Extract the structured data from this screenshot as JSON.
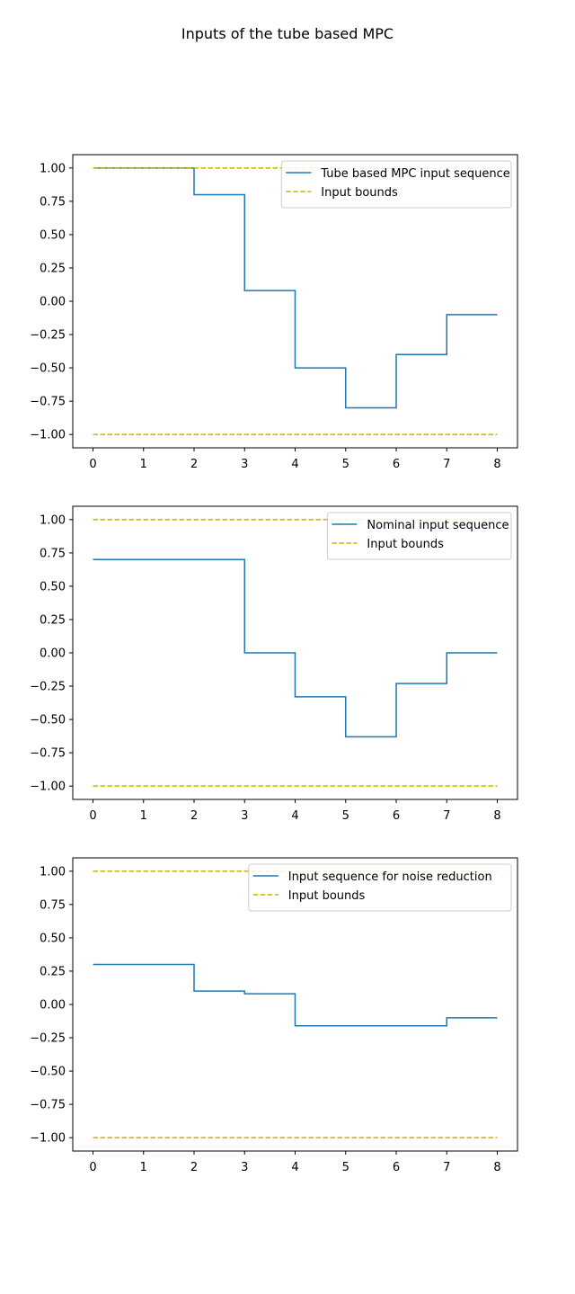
{
  "figure": {
    "title": "Inputs of the tube based MPC"
  },
  "colors": {
    "series": "#1f77b4",
    "bounds": "#c8b400",
    "axes": "#000000",
    "legend_border": "#cccccc"
  },
  "chart_data": [
    {
      "type": "line",
      "step": "post",
      "x": [
        0,
        1,
        2,
        3,
        4,
        5,
        6,
        7,
        8
      ],
      "xlim": [
        -0.4,
        8.4
      ],
      "ylim": [
        -1.1,
        1.1
      ],
      "xticks": [
        0,
        1,
        2,
        3,
        4,
        5,
        6,
        7,
        8
      ],
      "yticks": [
        1.0,
        0.75,
        0.5,
        0.25,
        0.0,
        -0.25,
        -0.5,
        -0.75,
        -1.0
      ],
      "ytick_labels": [
        "1.00",
        "0.75",
        "0.50",
        "0.25",
        "0.00",
        "−0.25",
        "−0.50",
        "−0.75",
        "−1.00"
      ],
      "grid": false,
      "legend_position": "top-right",
      "series": [
        {
          "name": "Tube based MPC input sequence",
          "style": "solid",
          "color": "#1f77b4",
          "values": [
            1.0,
            1.0,
            0.8,
            0.08,
            -0.5,
            -0.8,
            -0.4,
            -0.1,
            -0.1
          ]
        },
        {
          "name": "Input bounds",
          "style": "dashed",
          "color": "#c8b400",
          "values": [
            1.0,
            1.0,
            1.0,
            1.0,
            1.0,
            1.0,
            1.0,
            1.0,
            1.0
          ]
        },
        {
          "name": "",
          "style": "dashed",
          "color": "#c8b400",
          "values": [
            -1.0,
            -1.0,
            -1.0,
            -1.0,
            -1.0,
            -1.0,
            -1.0,
            -1.0,
            -1.0
          ]
        }
      ]
    },
    {
      "type": "line",
      "step": "post",
      "x": [
        0,
        1,
        2,
        3,
        4,
        5,
        6,
        7,
        8
      ],
      "xlim": [
        -0.4,
        8.4
      ],
      "ylim": [
        -1.1,
        1.1
      ],
      "xticks": [
        0,
        1,
        2,
        3,
        4,
        5,
        6,
        7,
        8
      ],
      "yticks": [
        1.0,
        0.75,
        0.5,
        0.25,
        0.0,
        -0.25,
        -0.5,
        -0.75,
        -1.0
      ],
      "ytick_labels": [
        "1.00",
        "0.75",
        "0.50",
        "0.25",
        "0.00",
        "−0.25",
        "−0.50",
        "−0.75",
        "−1.00"
      ],
      "grid": false,
      "legend_position": "top-right",
      "series": [
        {
          "name": "Nominal input sequence",
          "style": "solid",
          "color": "#1f77b4",
          "values": [
            0.7,
            0.7,
            0.7,
            0.0,
            -0.33,
            -0.63,
            -0.23,
            0.0,
            0.0
          ]
        },
        {
          "name": "Input bounds",
          "style": "dashed",
          "color": "#c8b400",
          "values": [
            1.0,
            1.0,
            1.0,
            1.0,
            1.0,
            1.0,
            1.0,
            1.0,
            1.0
          ]
        },
        {
          "name": "",
          "style": "dashed",
          "color": "#c8b400",
          "values": [
            -1.0,
            -1.0,
            -1.0,
            -1.0,
            -1.0,
            -1.0,
            -1.0,
            -1.0,
            -1.0
          ]
        }
      ]
    },
    {
      "type": "line",
      "step": "post",
      "x": [
        0,
        1,
        2,
        3,
        4,
        5,
        6,
        7,
        8
      ],
      "xlim": [
        -0.4,
        8.4
      ],
      "ylim": [
        -1.1,
        1.1
      ],
      "xticks": [
        0,
        1,
        2,
        3,
        4,
        5,
        6,
        7,
        8
      ],
      "yticks": [
        1.0,
        0.75,
        0.5,
        0.25,
        0.0,
        -0.25,
        -0.5,
        -0.75,
        -1.0
      ],
      "ytick_labels": [
        "1.00",
        "0.75",
        "0.50",
        "0.25",
        "0.00",
        "−0.25",
        "−0.50",
        "−0.75",
        "−1.00"
      ],
      "grid": false,
      "legend_position": "top-right",
      "series": [
        {
          "name": "Input sequence for noise reduction",
          "style": "solid",
          "color": "#1f77b4",
          "values": [
            0.3,
            0.3,
            0.1,
            0.08,
            -0.16,
            -0.16,
            -0.16,
            -0.1,
            -0.1
          ]
        },
        {
          "name": "Input bounds",
          "style": "dashed",
          "color": "#c8b400",
          "values": [
            1.0,
            1.0,
            1.0,
            1.0,
            1.0,
            1.0,
            1.0,
            1.0,
            1.0
          ]
        },
        {
          "name": "",
          "style": "dashed",
          "color": "#c8b400",
          "values": [
            -1.0,
            -1.0,
            -1.0,
            -1.0,
            -1.0,
            -1.0,
            -1.0,
            -1.0,
            -1.0
          ]
        }
      ]
    }
  ]
}
